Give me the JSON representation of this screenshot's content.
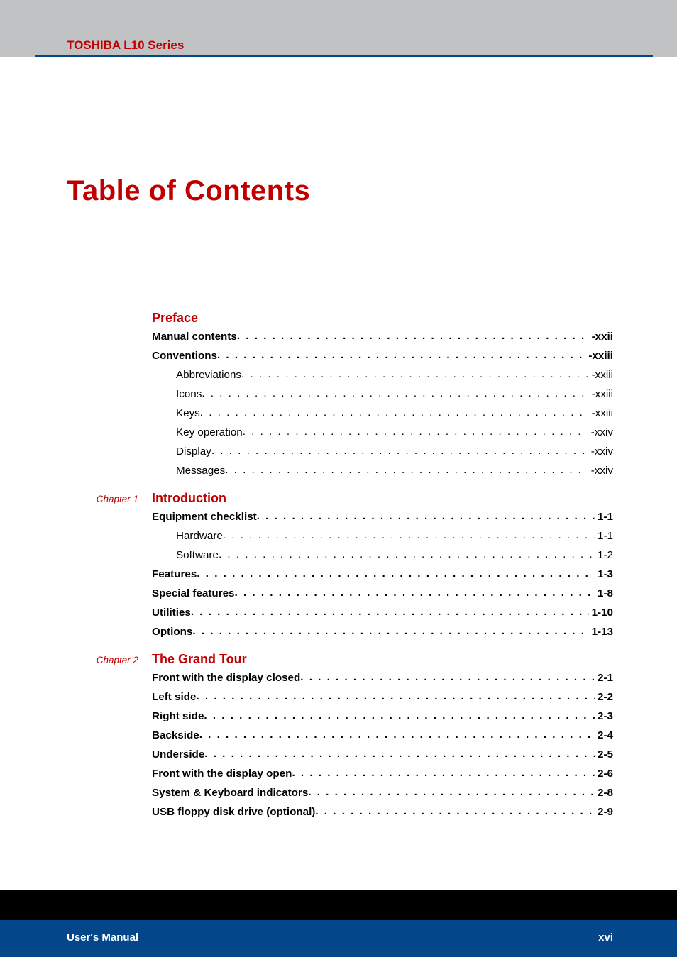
{
  "header": {
    "series": "TOSHIBA L10 Series"
  },
  "title": "Table of Contents",
  "footer": {
    "left": "User's Manual",
    "right": "xvi"
  },
  "colors": {
    "header_bg": "#c1c2c3",
    "header_rule": "#03468a",
    "red": "#c00000",
    "text": "#000000",
    "footer_black": "#000000",
    "footer_blue": "#03468a",
    "page_bg": "#ffffff"
  },
  "fonts": {
    "body": {
      "family": "Arial",
      "size_pt": 11.4
    },
    "section_title": {
      "family": "Arial",
      "size_pt": 13.5,
      "weight": "bold"
    },
    "main_title": {
      "family": "Arial Black",
      "size_pt": 30,
      "weight": "900"
    },
    "chapter_label": {
      "family": "Arial",
      "size_pt": 10,
      "style": "italic"
    }
  },
  "sections": [
    {
      "chapter": "",
      "title": "Preface",
      "entries": [
        {
          "label": "Manual contents",
          "page": "-xxii",
          "level": 0
        },
        {
          "label": "Conventions",
          "page": "-xxiii",
          "level": 0
        },
        {
          "label": "Abbreviations",
          "page": "-xxiii",
          "level": 1
        },
        {
          "label": "Icons",
          "page": "-xxiii",
          "level": 1
        },
        {
          "label": "Keys",
          "page": "-xxiii",
          "level": 1
        },
        {
          "label": "Key operation",
          "page": "-xxiv",
          "level": 1
        },
        {
          "label": "Display",
          "page": "-xxiv",
          "level": 1
        },
        {
          "label": "Messages",
          "page": "-xxiv",
          "level": 1
        }
      ]
    },
    {
      "chapter": "Chapter 1",
      "title": "Introduction",
      "entries": [
        {
          "label": "Equipment checklist",
          "page": "1-1",
          "level": 0
        },
        {
          "label": "Hardware",
          "page": "1-1",
          "level": 1
        },
        {
          "label": "Software",
          "page": "1-2",
          "level": 1
        },
        {
          "label": "Features",
          "page": "1-3",
          "level": 0
        },
        {
          "label": "Special features",
          "page": "1-8",
          "level": 0
        },
        {
          "label": "Utilities",
          "page": "1-10",
          "level": 0
        },
        {
          "label": "Options",
          "page": "1-13",
          "level": 0
        }
      ]
    },
    {
      "chapter": "Chapter 2",
      "title": "The Grand Tour",
      "entries": [
        {
          "label": "Front with the display closed",
          "page": "2-1",
          "level": 0
        },
        {
          "label": "Left side",
          "page": "2-2",
          "level": 0
        },
        {
          "label": "Right side",
          "page": "2-3",
          "level": 0
        },
        {
          "label": "Backside",
          "page": "2-4",
          "level": 0
        },
        {
          "label": "Underside",
          "page": "2-5",
          "level": 0
        },
        {
          "label": "Front with the display open",
          "page": "2-6",
          "level": 0
        },
        {
          "label": "System & Keyboard indicators",
          "page": "2-8",
          "level": 0
        },
        {
          "label": "USB floppy disk drive (optional)",
          "page": "2-9",
          "level": 0
        }
      ]
    }
  ]
}
